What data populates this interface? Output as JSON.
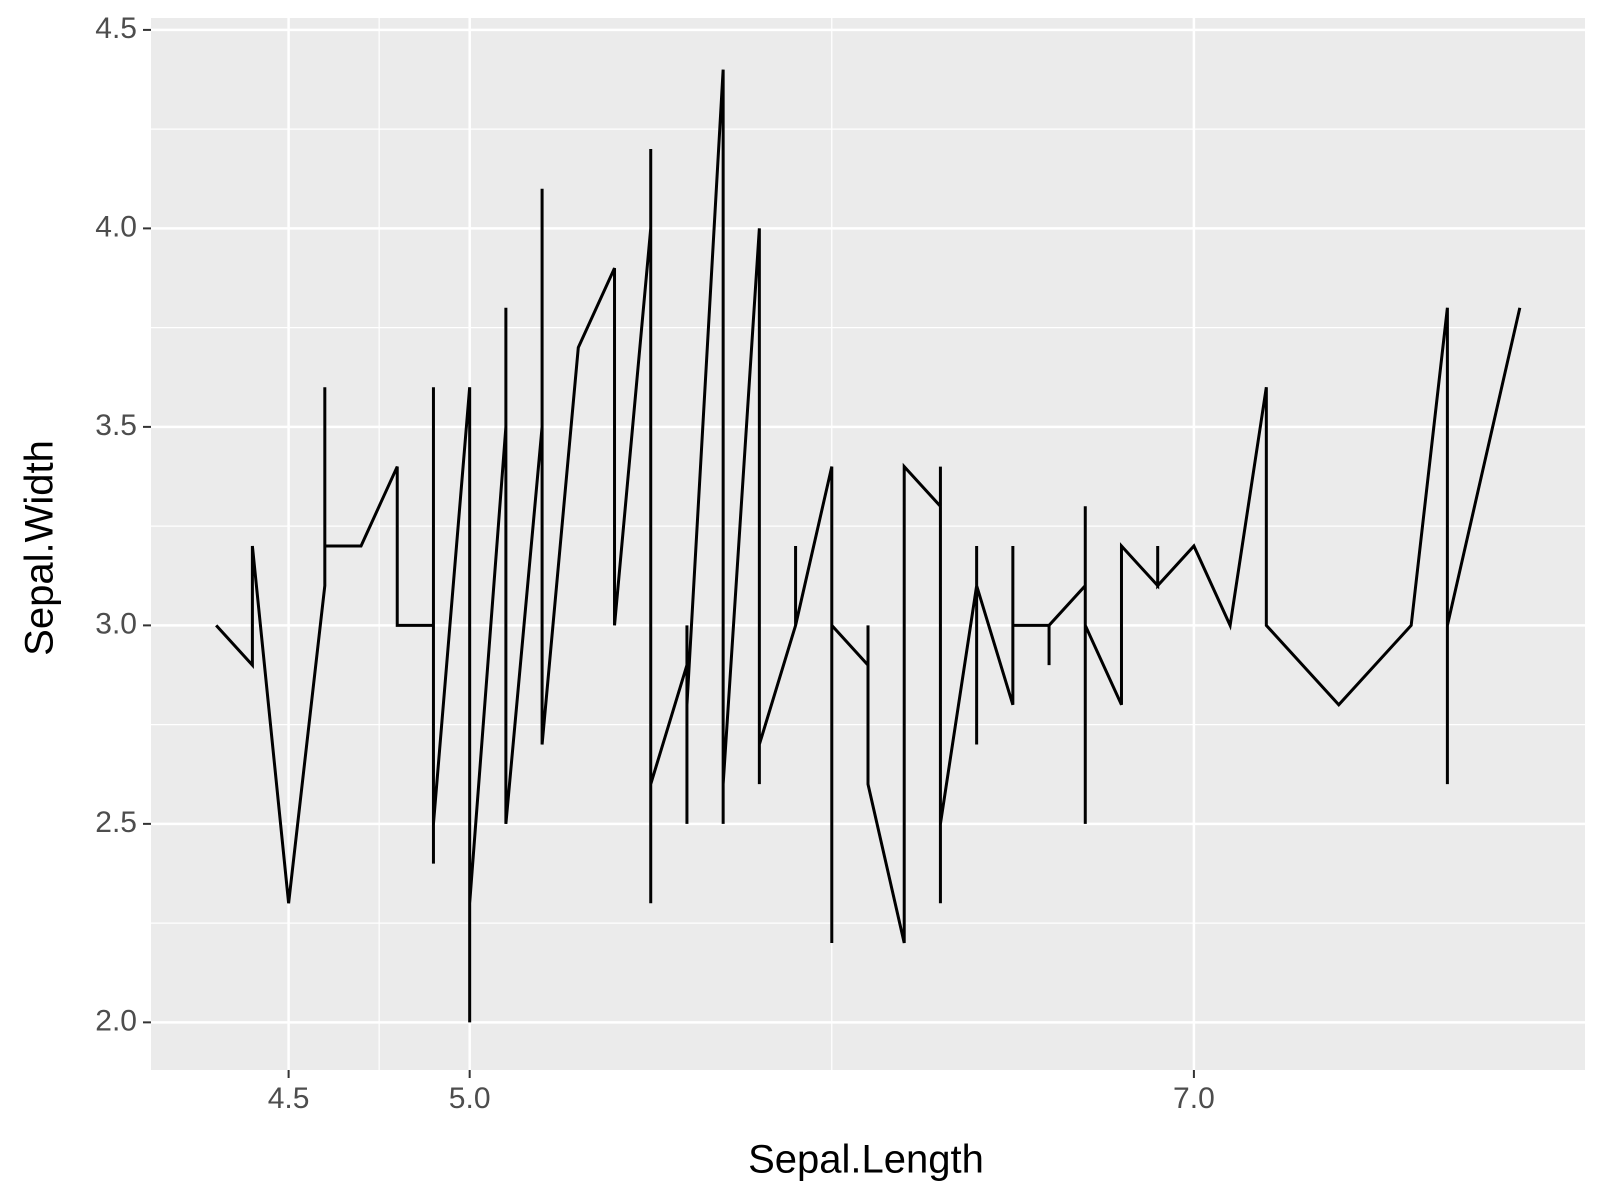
{
  "chart_data": {
    "type": "line",
    "x_label": "Sepal.Length",
    "y_label": "Sepal.Width",
    "x": [
      4.3,
      4.4,
      4.4,
      4.5,
      4.6,
      4.6,
      4.6,
      4.7,
      4.8,
      4.8,
      4.9,
      4.9,
      4.9,
      4.9,
      5.0,
      5.0,
      5.0,
      5.1,
      5.1,
      5.1,
      5.2,
      5.2,
      5.2,
      5.3,
      5.4,
      5.4,
      5.5,
      5.5,
      5.5,
      5.5,
      5.6,
      5.6,
      5.6,
      5.6,
      5.7,
      5.7,
      5.7,
      5.8,
      5.8,
      5.8,
      5.9,
      5.9,
      5.9,
      6.0,
      6.0,
      6.0,
      6.1,
      6.1,
      6.1,
      6.2,
      6.2,
      6.3,
      6.3,
      6.3,
      6.3,
      6.4,
      6.4,
      6.4,
      6.4,
      6.5,
      6.5,
      6.5,
      6.6,
      6.6,
      6.6,
      6.7,
      6.7,
      6.7,
      6.7,
      6.8,
      6.8,
      6.9,
      6.9,
      6.9,
      7.0,
      7.1,
      7.2,
      7.2,
      7.4,
      7.6,
      7.7,
      7.7,
      7.7,
      7.9
    ],
    "series": [
      {
        "name": "Sepal.Width",
        "color": "#000000",
        "values": [
          3.0,
          2.9,
          3.2,
          2.3,
          3.1,
          3.6,
          3.2,
          3.2,
          3.4,
          3.0,
          3.0,
          3.6,
          2.4,
          2.5,
          3.6,
          2.0,
          2.3,
          3.5,
          3.8,
          2.5,
          3.5,
          4.1,
          2.7,
          3.7,
          3.9,
          3.0,
          4.0,
          4.2,
          2.3,
          2.6,
          2.9,
          3.0,
          2.5,
          2.8,
          4.4,
          2.5,
          2.6,
          4.0,
          2.6,
          2.7,
          3.0,
          3.2,
          3.0,
          3.4,
          2.2,
          3.0,
          2.9,
          3.0,
          2.6,
          2.2,
          3.4,
          3.3,
          3.4,
          2.3,
          2.5,
          3.1,
          3.2,
          2.7,
          3.1,
          2.8,
          3.2,
          3.0,
          3.0,
          2.9,
          3.0,
          3.1,
          3.3,
          2.5,
          3.0,
          2.8,
          3.2,
          3.1,
          3.2,
          3.1,
          3.2,
          3.0,
          3.6,
          3.0,
          2.8,
          3.0,
          3.8,
          2.6,
          3.0,
          3.8
        ]
      }
    ],
    "xlim": [
      4.12,
      8.08
    ],
    "ylim": [
      1.88,
      4.53
    ],
    "xticks": [
      {
        "value": 4.5,
        "label": "4.5"
      },
      {
        "value": 5,
        "label": "5.0"
      },
      {
        "value": 7,
        "label": "7.0"
      }
    ],
    "yticks": [
      {
        "value": 2,
        "label": "2.0"
      },
      {
        "value": 2.5,
        "label": "2.5"
      },
      {
        "value": 3,
        "label": "3.0"
      },
      {
        "value": 3.5,
        "label": "3.5"
      },
      {
        "value": 4,
        "label": "4.0"
      },
      {
        "value": 4.5,
        "label": "4.5"
      }
    ],
    "grid": true,
    "panel_color": "#ebebeb"
  }
}
